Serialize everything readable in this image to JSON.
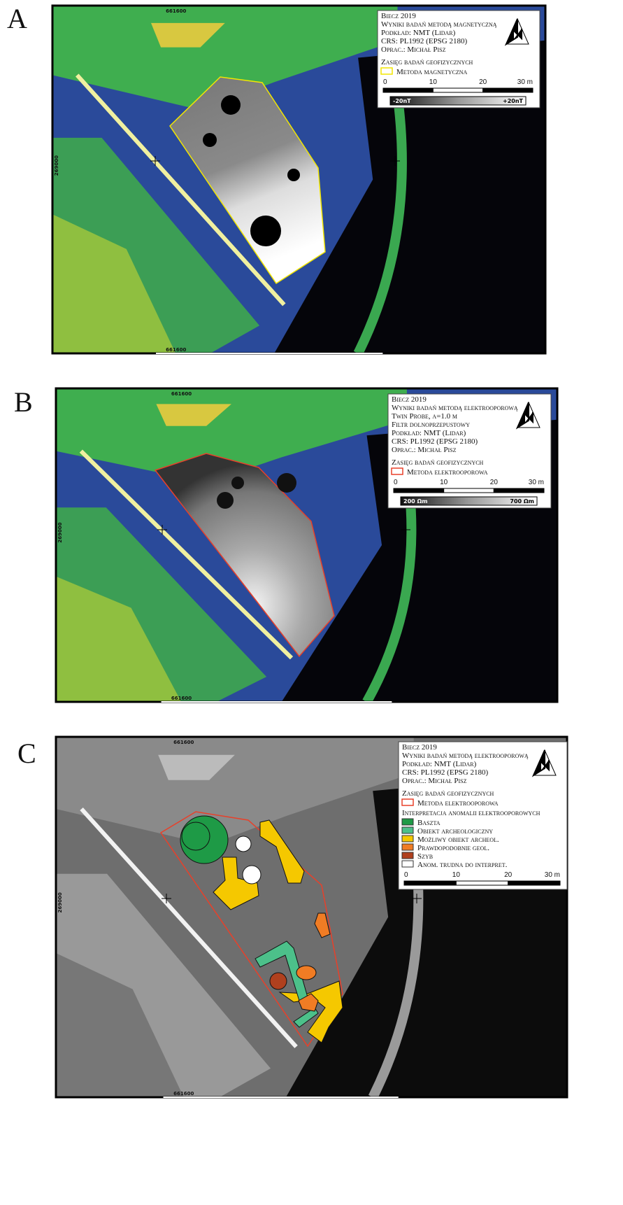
{
  "panels": [
    {
      "label": "A",
      "coord_top": "661600",
      "coord_bottom": "661600",
      "coord_side": "269000",
      "legend": {
        "title_lines": [
          "Biecz 2019",
          "Wyniki badań metodą magnetyczną",
          "Podkład: NMT (Lidar)",
          "CRS: PL1992 (EPSG 2180)",
          "Oprac.: Michał Pisz"
        ],
        "extent_heading": "Zasięg badań geofizycznych",
        "extent_item": "Metoda magnetyczna",
        "extent_color": "#f2e600",
        "scale": [
          "0",
          "10",
          "20",
          "30 m"
        ],
        "colorbar": [
          "-20nT",
          "+20nT"
        ]
      }
    },
    {
      "label": "B",
      "coord_top": "661600",
      "coord_bottom": "661600",
      "coord_side": "269000",
      "legend": {
        "title_lines": [
          "Biecz 2019",
          "Wyniki badań metodą elektrooporową",
          "Twin Probe, a=1.0 m",
          "Filtr dolnoprzepustowy",
          "Podkład: NMT (Lidar)",
          "CRS: PL1992 (EPSG 2180)",
          "Oprac.: Michał Pisz"
        ],
        "extent_heading": "Zasięg badań geofizycznych",
        "extent_item": "Metoda elektrooporowa",
        "extent_color": "#e8402a",
        "scale": [
          "0",
          "10",
          "20",
          "30 m"
        ],
        "colorbar": [
          "200 Ωm",
          "700 Ωm"
        ]
      }
    },
    {
      "label": "C",
      "coord_top": "661600",
      "coord_bottom": "661600",
      "coord_side": "269000",
      "legend": {
        "title_lines": [
          "Biecz 2019",
          "Wyniki badań metodą elektrooporową",
          "Podkład: NMT (Lidar)",
          "CRS: PL1992 (EPSG 2180)",
          "Oprac.: Michał Pisz"
        ],
        "extent_heading": "Zasięg badań geofizycznych",
        "extent_item": "Metoda elektrooporowa",
        "extent_color": "#e8402a",
        "interpretation_heading": "Interpretacja anomalii elektrooporowych",
        "interpretation_items": [
          {
            "label": "Baszta",
            "color": "#1e9a46"
          },
          {
            "label": "Obiekt archeologiczny",
            "color": "#4cc08a"
          },
          {
            "label": "Możliwy obiekt archeol.",
            "color": "#f5c800"
          },
          {
            "label": "Prawdopodobnie geol.",
            "color": "#f07c24"
          },
          {
            "label": "Szyb",
            "color": "#b0401e"
          },
          {
            "label": "Anom. trudna do interpret.",
            "color": "#ffffff"
          }
        ],
        "scale": [
          "0",
          "10",
          "20",
          "30 m"
        ]
      }
    }
  ]
}
